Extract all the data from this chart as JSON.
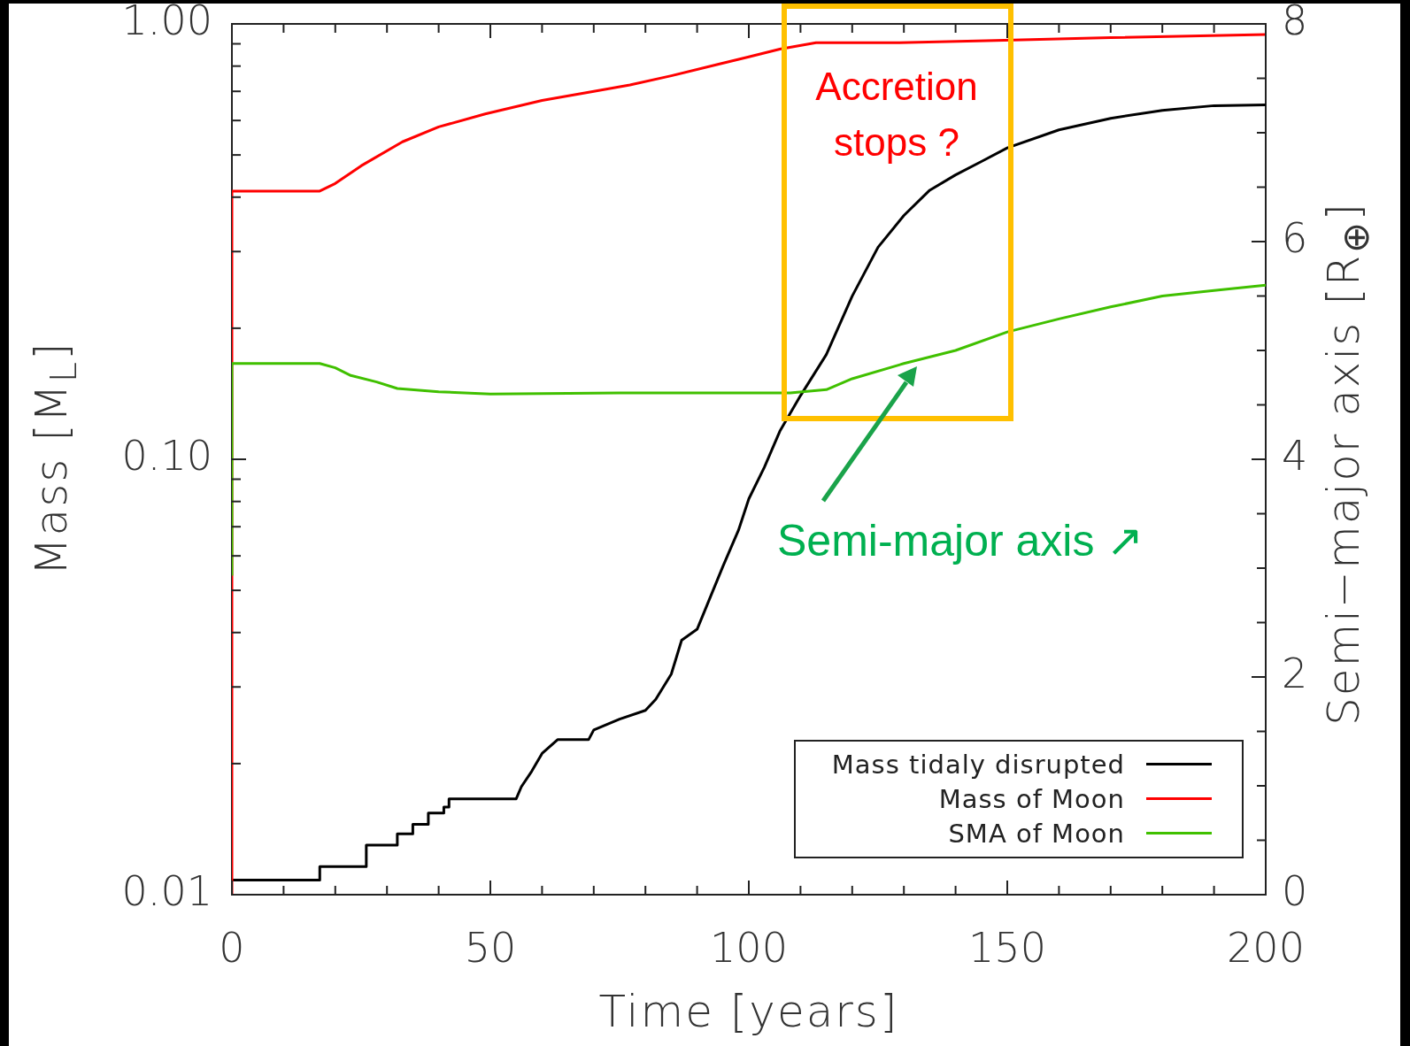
{
  "chart_data": {
    "type": "line",
    "xlabel": "Time [years]",
    "ylabel": "Mass [M$_{L}$]",
    "y2label": "Semi−major axis [R$_{⊕}$]",
    "xlim": [
      0,
      200
    ],
    "xticks": [
      0,
      {
        "value": 10,
        "label": null
      },
      {
        "value": 20,
        "label": null
      },
      {
        "value": 30,
        "label": null
      },
      {
        "value": 40,
        "label": null
      },
      50,
      {
        "value": 60,
        "label": null
      },
      {
        "value": 70,
        "label": null
      },
      {
        "value": 80,
        "label": null
      },
      {
        "value": 90,
        "label": null
      },
      100,
      {
        "value": 110,
        "label": null
      },
      {
        "value": 120,
        "label": null
      },
      {
        "value": 130,
        "label": null
      },
      {
        "value": 140,
        "label": null
      },
      150,
      {
        "value": 160,
        "label": null
      },
      {
        "value": 170,
        "label": null
      },
      {
        "value": 180,
        "label": null
      },
      {
        "value": 190,
        "label": null
      },
      200
    ],
    "log": "y",
    "ylim": [
      0.01,
      1
    ],
    "yticks": [
      0.01,
      {
        "value": 0.02,
        "label": null
      },
      {
        "value": 0.03,
        "label": null
      },
      {
        "value": 0.04,
        "label": null
      },
      {
        "value": 0.05,
        "label": null
      },
      {
        "value": 0.06,
        "label": null
      },
      {
        "value": 0.07,
        "label": null
      },
      {
        "value": 0.08,
        "label": null
      },
      {
        "value": 0.09,
        "label": null
      },
      {
        "value": 0.1,
        "label": "0.10"
      },
      {
        "value": 0.2,
        "label": null
      },
      {
        "value": 0.3,
        "label": null
      },
      {
        "value": 0.4,
        "label": null
      },
      {
        "value": 0.5,
        "label": null
      },
      {
        "value": 0.6,
        "label": null
      },
      {
        "value": 0.7,
        "label": null
      },
      {
        "value": 0.8,
        "label": null
      },
      {
        "value": 0.9,
        "label": null
      },
      {
        "value": 1,
        "label": "1.00"
      }
    ],
    "y2lim": [
      0,
      8
    ],
    "y2ticks": [
      0,
      {
        "value": 0.5,
        "label": null
      },
      {
        "value": 1,
        "label": null
      },
      {
        "value": 1.5,
        "label": null
      },
      2,
      {
        "value": 2.5,
        "label": null
      },
      {
        "value": 3,
        "label": null
      },
      {
        "value": 3.5,
        "label": null
      },
      4,
      {
        "value": 4.5,
        "label": null
      },
      {
        "value": 5,
        "label": null
      },
      {
        "value": 5.5,
        "label": null
      },
      6,
      {
        "value": 6.5,
        "label": null
      },
      {
        "value": 7,
        "label": null
      },
      {
        "value": 7.5,
        "label": null
      },
      8
    ],
    "marker": "none",
    "line_style": "solid",
    "legend": "bottom right",
    "series": [
      {
        "name": "Mass tidaly disrupted",
        "color": "#000000",
        "x": [
          0,
          17,
          17,
          26,
          26,
          32,
          32,
          35,
          35,
          38,
          38,
          41,
          41,
          42,
          42,
          55,
          55,
          56,
          58,
          60,
          63,
          69,
          70,
          75,
          80,
          82,
          85,
          87,
          90,
          92,
          95,
          98,
          100,
          103,
          106,
          110,
          115,
          120,
          125,
          130,
          135,
          140,
          145,
          150,
          160,
          170,
          180,
          190,
          200
        ],
        "values": [
          0.0108,
          0.0108,
          0.0116,
          0.0116,
          0.013,
          0.013,
          0.0138,
          0.0138,
          0.0145,
          0.0145,
          0.0154,
          0.0154,
          0.0159,
          0.0159,
          0.0166,
          0.0166,
          0.0166,
          0.0177,
          0.0192,
          0.0211,
          0.0227,
          0.0227,
          0.0239,
          0.0253,
          0.0265,
          0.0281,
          0.0321,
          0.0384,
          0.0407,
          0.0465,
          0.0568,
          0.0687,
          0.0811,
          0.0958,
          0.116,
          0.14,
          0.174,
          0.237,
          0.307,
          0.363,
          0.415,
          0.45,
          0.483,
          0.519,
          0.571,
          0.607,
          0.633,
          0.649,
          0.652
        ]
      },
      {
        "name": "Mass of Moon",
        "color": "#ff0000",
        "x": [
          0,
          0,
          17,
          20,
          25,
          33,
          40,
          49,
          60,
          70,
          77,
          85,
          94,
          100,
          106,
          113,
          120,
          129,
          146,
          170,
          200
        ],
        "values": [
          0.01,
          0.413,
          0.413,
          0.43,
          0.472,
          0.536,
          0.58,
          0.621,
          0.667,
          0.7,
          0.724,
          0.76,
          0.807,
          0.84,
          0.875,
          0.905,
          0.905,
          0.905,
          0.915,
          0.93,
          0.945
        ]
      },
      {
        "name": "SMA of Moon",
        "color": "#40c000",
        "axis": "y2",
        "x": [
          0,
          0,
          17,
          20,
          23,
          28,
          32,
          40,
          50,
          75,
          100,
          108,
          115,
          120,
          130,
          140,
          150,
          160,
          170,
          180,
          190,
          200
        ],
        "values": [
          2.93,
          4.88,
          4.88,
          4.84,
          4.77,
          4.71,
          4.65,
          4.62,
          4.6,
          4.61,
          4.61,
          4.61,
          4.64,
          4.74,
          4.88,
          5.0,
          5.17,
          5.29,
          5.4,
          5.5,
          5.55,
          5.6
        ]
      }
    ],
    "annotations": [
      "Accretion stops ?",
      "Semi-major axis ↗"
    ]
  }
}
